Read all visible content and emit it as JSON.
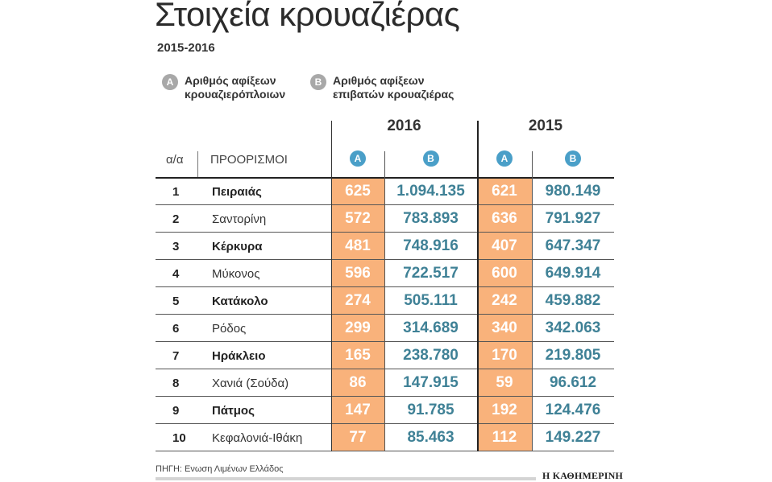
{
  "title": "Στοιχεία κρουαζιέρας",
  "subtitle": "2015-2016",
  "legend": {
    "a": {
      "badge": "A",
      "text": "Αριθμός αφίξεων κρουαζιερόπλοιων"
    },
    "b": {
      "badge": "B",
      "text": "Αριθμός αφίξεων επιβατών κρουαζιέρας"
    }
  },
  "colors": {
    "highlight": "#f9b27b",
    "badge_header": "#4a9fc8",
    "badge_legend": "#a8a8a8",
    "value_b": "#3f8196"
  },
  "chart_data": {
    "type": "table",
    "years": [
      "2016",
      "2015"
    ],
    "columns": [
      "α/α",
      "ΠΡΟΟΡΙΣΜΟΙ",
      "A",
      "B",
      "A",
      "B"
    ],
    "rows": [
      {
        "rank": "1",
        "destination": "Πειραιάς",
        "bold": true,
        "a2016": "625",
        "b2016": "1.094.135",
        "a2015": "621",
        "b2015": "980.149"
      },
      {
        "rank": "2",
        "destination": "Σαντορίνη",
        "bold": false,
        "a2016": "572",
        "b2016": "783.893",
        "a2015": "636",
        "b2015": "791.927"
      },
      {
        "rank": "3",
        "destination": "Κέρκυρα",
        "bold": true,
        "a2016": "481",
        "b2016": "748.916",
        "a2015": "407",
        "b2015": "647.347"
      },
      {
        "rank": "4",
        "destination": "Μύκονος",
        "bold": false,
        "a2016": "596",
        "b2016": "722.517",
        "a2015": "600",
        "b2015": "649.914"
      },
      {
        "rank": "5",
        "destination": "Κατάκολο",
        "bold": true,
        "a2016": "274",
        "b2016": "505.111",
        "a2015": "242",
        "b2015": "459.882"
      },
      {
        "rank": "6",
        "destination": "Ρόδος",
        "bold": false,
        "a2016": "299",
        "b2016": "314.689",
        "a2015": "340",
        "b2015": "342.063"
      },
      {
        "rank": "7",
        "destination": "Ηράκλειο",
        "bold": true,
        "a2016": "165",
        "b2016": "238.780",
        "a2015": "170",
        "b2015": "219.805"
      },
      {
        "rank": "8",
        "destination": "Χανιά (Σούδα)",
        "bold": false,
        "a2016": "86",
        "b2016": "147.915",
        "a2015": "59",
        "b2015": "96.612"
      },
      {
        "rank": "9",
        "destination": "Πάτμος",
        "bold": true,
        "a2016": "147",
        "b2016": "91.785",
        "a2015": "192",
        "b2015": "124.476"
      },
      {
        "rank": "10",
        "destination": "Κεφαλονιά-Ιθάκη",
        "bold": false,
        "a2016": "77",
        "b2016": "85.463",
        "a2015": "112",
        "b2015": "149.227"
      }
    ]
  },
  "source": "ΠΗΓΗ: Ενωση Λιμένων Ελλάδος",
  "brand": "Η ΚΑΘΗΜΕΡΙΝΗ"
}
